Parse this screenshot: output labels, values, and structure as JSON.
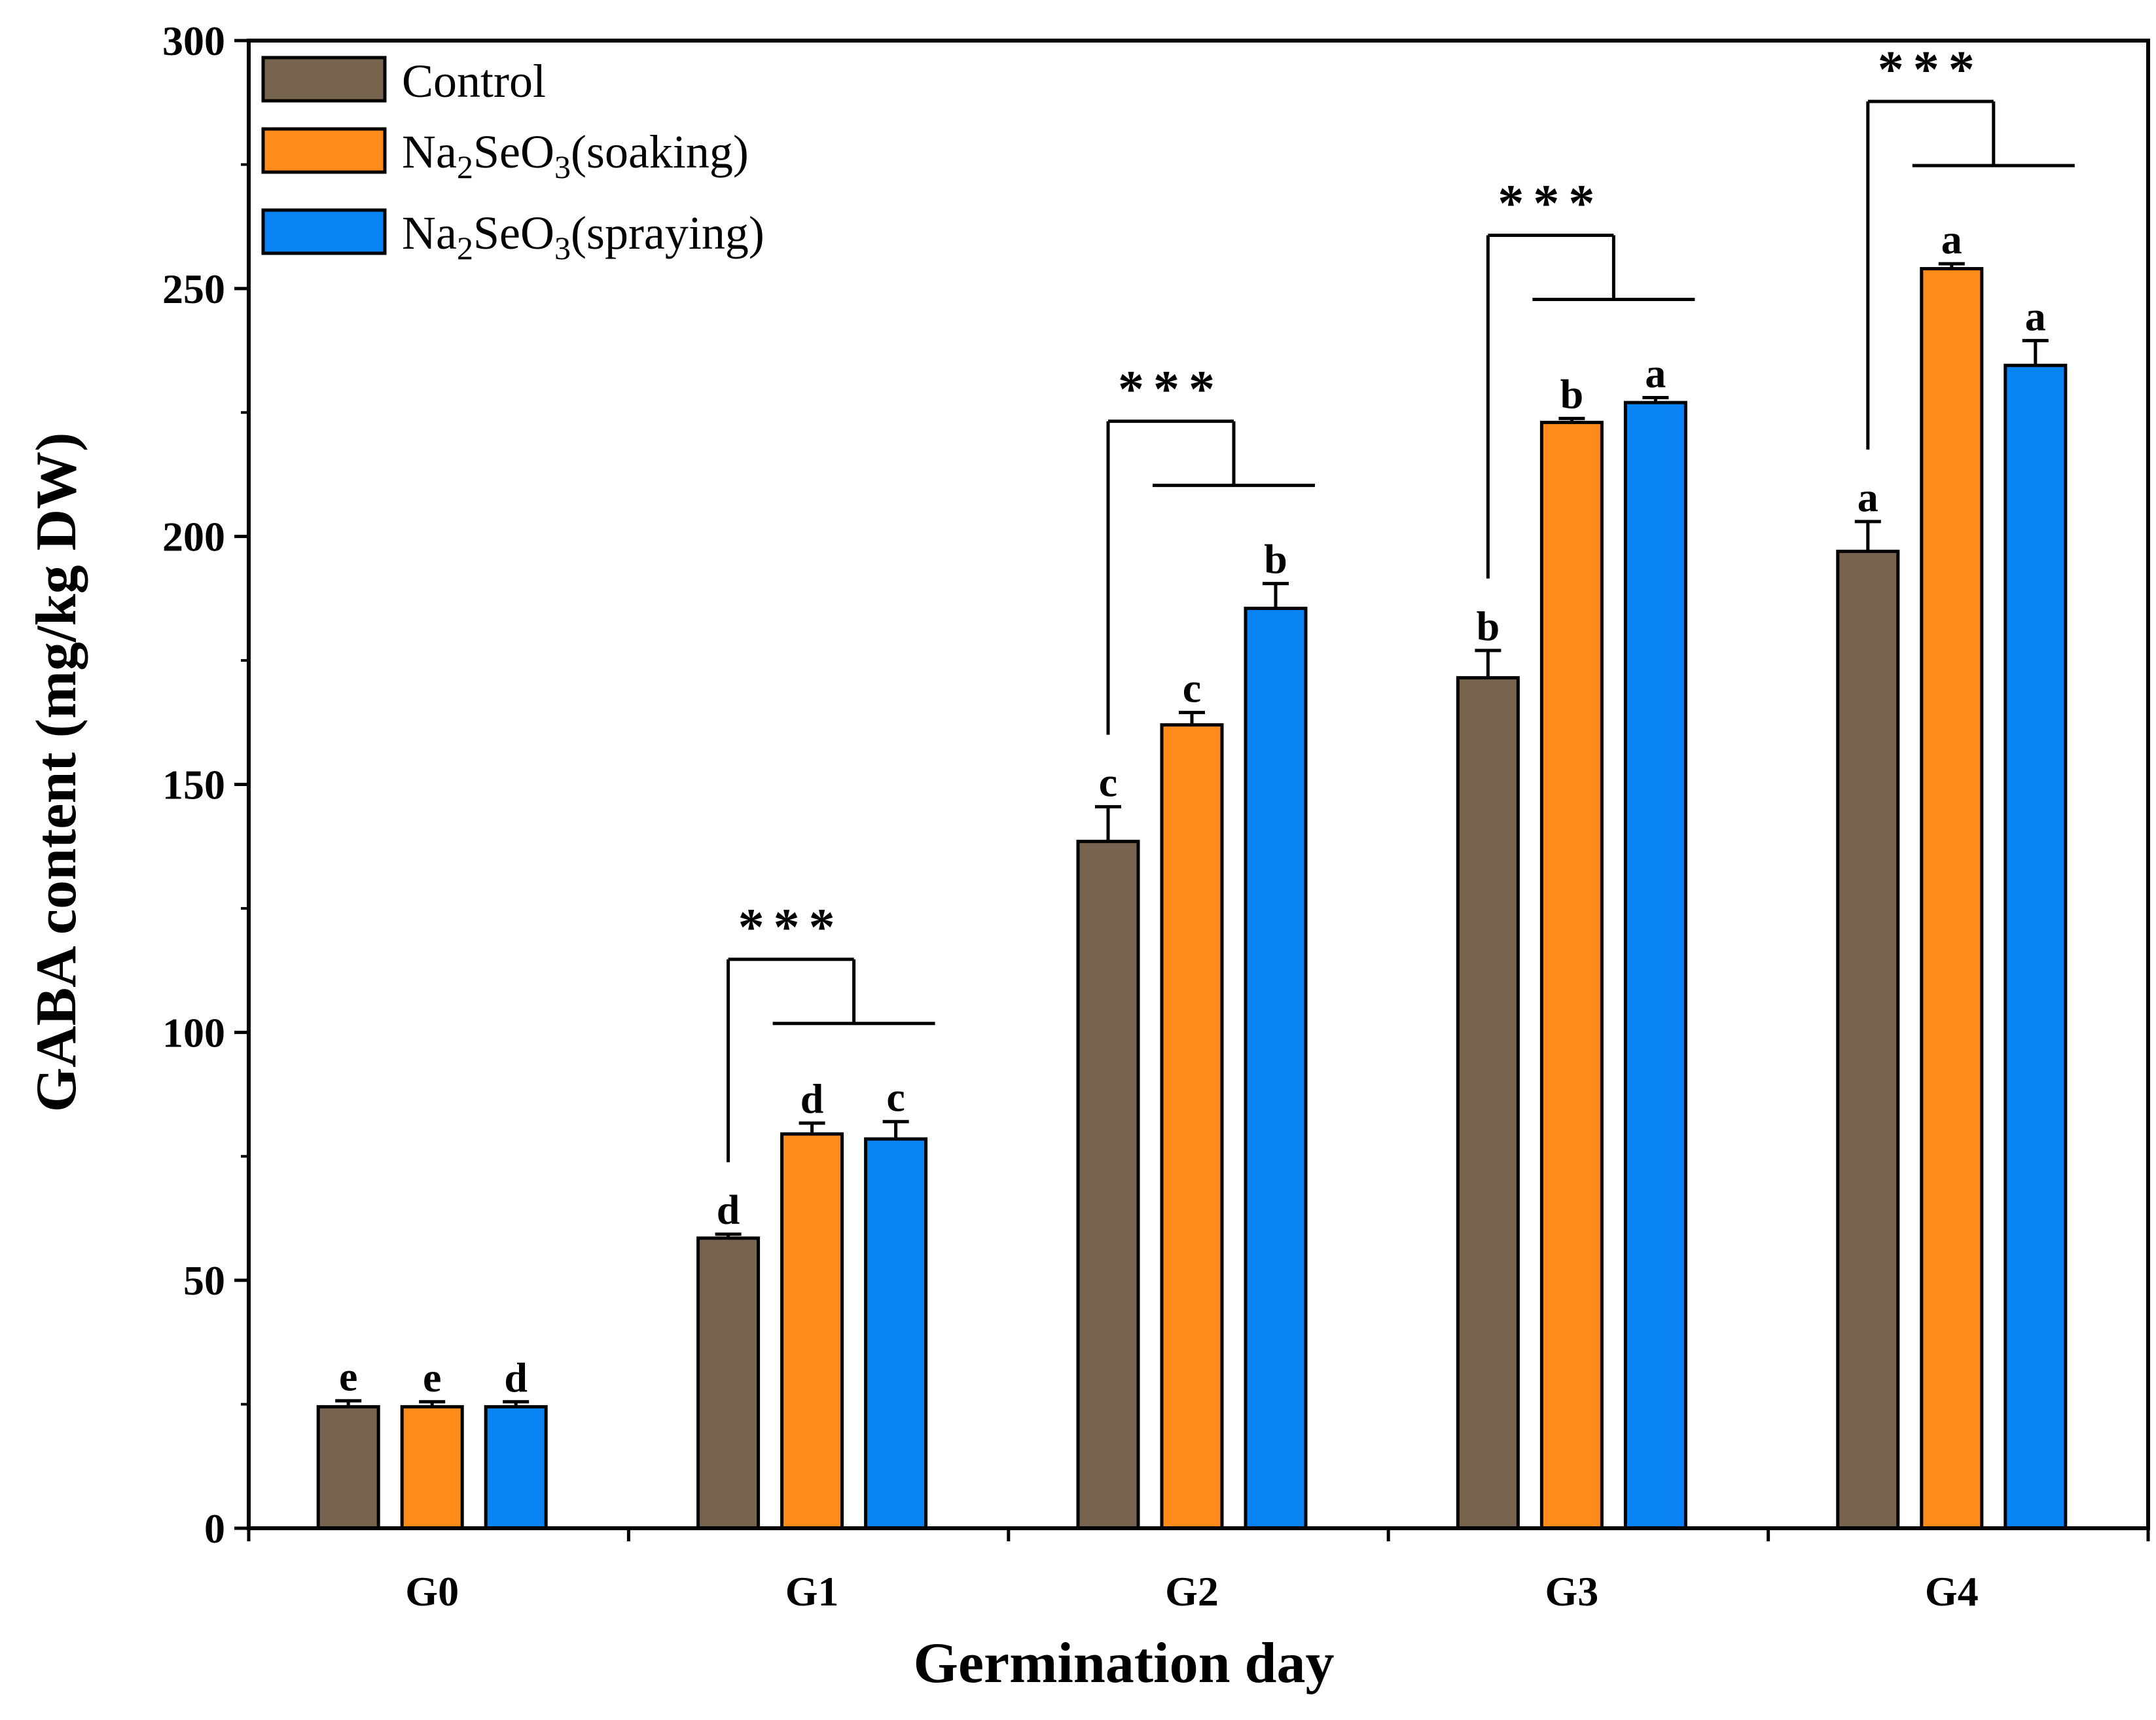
{
  "chart_data": {
    "type": "bar",
    "title": "",
    "xlabel": "Germination day",
    "ylabel": "GABA content (mg/kg DW)",
    "ylim": [
      0,
      300
    ],
    "yticks": [
      "0",
      "50",
      "100",
      "150",
      "200",
      "250",
      "300"
    ],
    "categories": [
      "G0",
      "G1",
      "G2",
      "G3",
      "G4"
    ],
    "series": [
      {
        "name": "Control",
        "color": "#76644f",
        "values": [
          24.5,
          58.5,
          138.5,
          171.5,
          197.0
        ],
        "errors": [
          1.2,
          0.8,
          7.0,
          5.5,
          6.0
        ],
        "letters": [
          "e",
          "d",
          "c",
          "b",
          "a"
        ]
      },
      {
        "name": "Na2SeO3(soaking)",
        "name_main": "Na",
        "name_sub1": "2",
        "name_mid": "SeO",
        "name_sub2": "3",
        "name_tail": "(soaking)",
        "color": "#ff8c1a",
        "values": [
          24.5,
          79.5,
          162.0,
          223.0,
          254.0
        ],
        "errors": [
          1.0,
          2.2,
          2.5,
          0.8,
          1.0
        ],
        "letters": [
          "e",
          "d",
          "c",
          "b",
          "a"
        ]
      },
      {
        "name": "Na2SeO3(spraying)",
        "name_main": "Na",
        "name_sub1": "2",
        "name_mid": "SeO",
        "name_sub2": "3",
        "name_tail": "(spraying)",
        "color": "#0a84f5",
        "values": [
          24.5,
          78.5,
          185.5,
          227.0,
          234.5
        ],
        "errors": [
          1.0,
          3.5,
          5.0,
          1.0,
          5.0
        ],
        "letters": [
          "d",
          "c",
          "b",
          "a",
          "a"
        ]
      }
    ],
    "significance": [
      {
        "category": "G1",
        "label": "***"
      },
      {
        "category": "G2",
        "label": "***"
      },
      {
        "category": "G3",
        "label": "***"
      },
      {
        "category": "G4",
        "label": "***"
      }
    ],
    "legend_position": "top-left",
    "grid": false
  }
}
